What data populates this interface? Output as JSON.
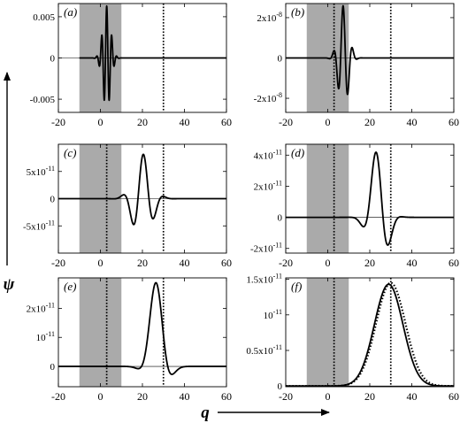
{
  "figure": {
    "ylabel": "ψ",
    "xlabel": "q"
  },
  "chart_data": [
    {
      "type": "line",
      "panel_label": "(a)",
      "xlim": [
        -20,
        60
      ],
      "ylim": [
        -0.0066,
        0.0066
      ],
      "x_ticks": [
        -20,
        0,
        20,
        40,
        60
      ],
      "y_ticks": [
        {
          "value": 0.005,
          "label": "0.005"
        },
        {
          "value": 0,
          "label": "0"
        },
        {
          "value": -0.005,
          "label": "-0.005"
        }
      ],
      "shaded_region": [
        -10,
        10
      ],
      "dotted_verticals": [
        30
      ],
      "grid": false,
      "series": [
        {
          "style": "solid",
          "kind": "wavepacket",
          "center": 3,
          "width": 2.6,
          "wavelength": 2.4,
          "phase": 0,
          "amplitude": 0.0063,
          "x_start": -10
        }
      ]
    },
    {
      "type": "line",
      "panel_label": "(b)",
      "xlim": [
        -20,
        60
      ],
      "ylim": [
        -2.7e-08,
        2.7e-08
      ],
      "x_ticks": [
        -20,
        0,
        20,
        40,
        60
      ],
      "y_ticks": [
        {
          "value": 2e-08,
          "label": "2x10-8"
        },
        {
          "value": 0,
          "label": "0"
        },
        {
          "value": -2e-08,
          "label": "-2x10-8"
        }
      ],
      "shaded_region": [
        -10,
        10
      ],
      "dotted_verticals": [
        3,
        30
      ],
      "grid": false,
      "series": [
        {
          "style": "solid",
          "kind": "wavepacket",
          "center": 7.5,
          "width": 3.3,
          "wavelength": 4.6,
          "phase": 0.3,
          "amplitude": 2.6e-08,
          "x_start": -20
        }
      ]
    },
    {
      "type": "line",
      "panel_label": "(c)",
      "xlim": [
        -20,
        60
      ],
      "ylim": [
        -1e-10,
        1e-10
      ],
      "x_ticks": [
        -20,
        0,
        20,
        40,
        60
      ],
      "y_ticks": [
        {
          "value": 5e-11,
          "label": "5x10-11"
        },
        {
          "value": 0,
          "label": "0"
        },
        {
          "value": -5e-11,
          "label": "-5x10-11"
        }
      ],
      "shaded_region": [
        -10,
        10
      ],
      "dotted_verticals": [
        3,
        30
      ],
      "grid": false,
      "series": [
        {
          "style": "solid",
          "kind": "wavepacket",
          "center": 20,
          "width": 6,
          "wavelength": 10.5,
          "phase": -0.3,
          "amplitude": 8.2e-11,
          "x_start": -20
        }
      ]
    },
    {
      "type": "line",
      "panel_label": "(d)",
      "xlim": [
        -20,
        60
      ],
      "ylim": [
        -2.3e-11,
        4.7e-11
      ],
      "x_ticks": [
        -20,
        0,
        20,
        40,
        60
      ],
      "y_ticks": [
        {
          "value": 4e-11,
          "label": "4x10-11"
        },
        {
          "value": 2e-11,
          "label": "2x10-11"
        },
        {
          "value": 0,
          "label": "0"
        },
        {
          "value": -2e-11,
          "label": "-2x10-11"
        }
      ],
      "shaded_region": [
        -10,
        10
      ],
      "dotted_verticals": [
        3,
        30
      ],
      "grid": false,
      "series": [
        {
          "style": "solid",
          "kind": "wavepacket",
          "center": 24,
          "width": 5.5,
          "wavelength": 15,
          "phase": 0.6,
          "amplitude": 4.4e-11,
          "x_start": -20
        }
      ]
    },
    {
      "type": "line",
      "panel_label": "(e)",
      "xlim": [
        -20,
        60
      ],
      "ylim": [
        -7e-12,
        3.05e-11
      ],
      "x_ticks": [
        -20,
        0,
        20,
        40,
        60
      ],
      "y_ticks": [
        {
          "value": 2e-11,
          "label": "2x10-11"
        },
        {
          "value": 1e-11,
          "label": "10-11"
        },
        {
          "value": 0,
          "label": "0"
        }
      ],
      "shaded_region": [
        -10,
        10
      ],
      "dotted_verticals": [
        3,
        30
      ],
      "grid": false,
      "series": [
        {
          "style": "solid",
          "kind": "wavepacket",
          "center": 27,
          "width": 5.5,
          "wavelength": 25,
          "phase": 0.3,
          "amplitude": 2.95e-11,
          "x_start": -20
        }
      ]
    },
    {
      "type": "line",
      "panel_label": "(f)",
      "xlim": [
        -20,
        60
      ],
      "ylim": [
        -1e-13,
        1.52e-11
      ],
      "x_ticks": [
        -20,
        0,
        20,
        40,
        60
      ],
      "y_ticks": [
        {
          "value": 1.5e-11,
          "label": "1.5x10-11"
        },
        {
          "value": 1e-11,
          "label": "10-11"
        },
        {
          "value": 5e-12,
          "label": "0.5x10-11"
        },
        {
          "value": 0,
          "label": "0"
        }
      ],
      "shaded_region": [
        -10,
        10
      ],
      "dotted_verticals": [
        3,
        30
      ],
      "grid": false,
      "series": [
        {
          "style": "solid",
          "kind": "gaussian",
          "center": 29,
          "width": 9.6,
          "amplitude": 1.43e-11,
          "x_start": -20
        },
        {
          "style": "dotted",
          "kind": "gaussian",
          "center": 30,
          "width": 9.9,
          "amplitude": 1.45e-11,
          "x_start": -20
        }
      ]
    }
  ]
}
